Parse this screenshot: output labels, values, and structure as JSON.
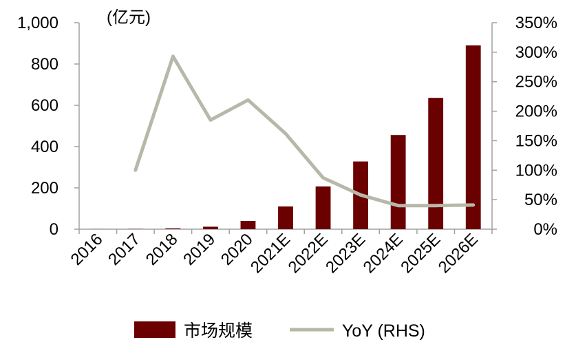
{
  "chart_data": {
    "type": "bar",
    "categories": [
      "2016",
      "2017",
      "2018",
      "2019",
      "2020",
      "2021E",
      "2022E",
      "2023E",
      "2024E",
      "2025E",
      "2026E"
    ],
    "series": [
      {
        "name": "市场规模",
        "type": "bar",
        "axis": "left",
        "color": "#6b0000",
        "values": [
          0.3,
          1,
          4,
          12,
          40,
          110,
          207,
          328,
          456,
          636,
          890
        ]
      },
      {
        "name": "YoY (RHS)",
        "type": "line",
        "axis": "right",
        "color": "#b8b8aa",
        "values": [
          null,
          100,
          293,
          185,
          219,
          162,
          87,
          58,
          40,
          40,
          41
        ]
      }
    ],
    "y_left": {
      "unit": "(亿元)",
      "ylim": [
        0,
        1000
      ],
      "ticks": [
        "0",
        "200",
        "400",
        "600",
        "800",
        "1,000"
      ]
    },
    "y_right": {
      "ylim": [
        0,
        350
      ],
      "ticks": [
        "0%",
        "50%",
        "100%",
        "150%",
        "200%",
        "250%",
        "300%",
        "350%"
      ]
    },
    "legend": {
      "position": "bottom"
    },
    "grid": false,
    "title": "",
    "xlabel": ""
  }
}
